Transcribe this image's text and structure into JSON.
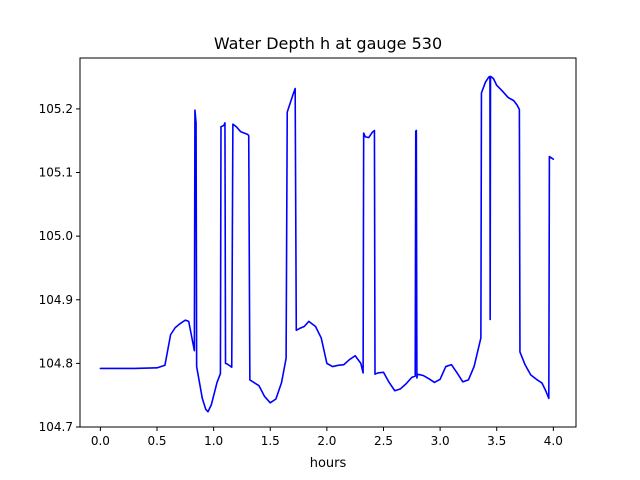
{
  "chart_data": {
    "type": "line",
    "title": "Water Depth h at gauge 530",
    "xlabel": "hours",
    "ylabel": "",
    "xlim": [
      -0.18,
      4.2
    ],
    "ylim": [
      104.7,
      105.28
    ],
    "xticks": [
      0.0,
      0.5,
      1.0,
      1.5,
      2.0,
      2.5,
      3.0,
      3.5,
      4.0
    ],
    "xtick_labels": [
      "0.0",
      "0.5",
      "1.0",
      "1.5",
      "2.0",
      "2.5",
      "3.0",
      "3.5",
      "4.0"
    ],
    "yticks": [
      104.7,
      104.8,
      104.9,
      105.0,
      105.1,
      105.2
    ],
    "ytick_labels": [
      "104.7",
      "104.8",
      "104.9",
      "105.0",
      "105.1",
      "105.2"
    ],
    "grid": false,
    "legend": "none",
    "series": [
      {
        "color": "#0000ff",
        "points": [
          [
            0.0,
            104.792
          ],
          [
            0.3,
            104.792
          ],
          [
            0.5,
            104.793
          ],
          [
            0.57,
            104.797
          ],
          [
            0.62,
            104.845
          ],
          [
            0.66,
            104.856
          ],
          [
            0.7,
            104.862
          ],
          [
            0.75,
            104.868
          ],
          [
            0.78,
            104.866
          ],
          [
            0.83,
            104.82
          ],
          [
            0.835,
            105.198
          ],
          [
            0.845,
            105.178
          ],
          [
            0.85,
            104.795
          ],
          [
            0.9,
            104.745
          ],
          [
            0.93,
            104.728
          ],
          [
            0.95,
            104.724
          ],
          [
            0.98,
            104.735
          ],
          [
            1.03,
            104.77
          ],
          [
            1.06,
            104.784
          ],
          [
            1.065,
            105.172
          ],
          [
            1.09,
            105.174
          ],
          [
            1.1,
            105.178
          ],
          [
            1.105,
            104.8
          ],
          [
            1.12,
            104.799
          ],
          [
            1.16,
            104.794
          ],
          [
            1.17,
            105.176
          ],
          [
            1.2,
            105.172
          ],
          [
            1.24,
            105.164
          ],
          [
            1.3,
            105.16
          ],
          [
            1.31,
            105.158
          ],
          [
            1.32,
            104.774
          ],
          [
            1.4,
            104.765
          ],
          [
            1.45,
            104.748
          ],
          [
            1.5,
            104.738
          ],
          [
            1.55,
            104.744
          ],
          [
            1.6,
            104.77
          ],
          [
            1.64,
            104.808
          ],
          [
            1.65,
            105.195
          ],
          [
            1.7,
            105.222
          ],
          [
            1.72,
            105.232
          ],
          [
            1.73,
            104.852
          ],
          [
            1.76,
            104.855
          ],
          [
            1.8,
            104.858
          ],
          [
            1.84,
            104.866
          ],
          [
            1.9,
            104.858
          ],
          [
            1.95,
            104.84
          ],
          [
            2.0,
            104.8
          ],
          [
            2.05,
            104.795
          ],
          [
            2.1,
            104.797
          ],
          [
            2.15,
            104.798
          ],
          [
            2.2,
            104.806
          ],
          [
            2.25,
            104.812
          ],
          [
            2.3,
            104.8
          ],
          [
            2.32,
            104.785
          ],
          [
            2.325,
            105.162
          ],
          [
            2.34,
            105.156
          ],
          [
            2.37,
            105.155
          ],
          [
            2.4,
            105.163
          ],
          [
            2.42,
            105.166
          ],
          [
            2.425,
            104.783
          ],
          [
            2.45,
            104.785
          ],
          [
            2.5,
            104.786
          ],
          [
            2.55,
            104.77
          ],
          [
            2.6,
            104.757
          ],
          [
            2.65,
            104.76
          ],
          [
            2.7,
            104.768
          ],
          [
            2.75,
            104.778
          ],
          [
            2.78,
            104.78
          ],
          [
            2.785,
            105.165
          ],
          [
            2.79,
            105.166
          ],
          [
            2.795,
            104.777
          ],
          [
            2.8,
            104.783
          ],
          [
            2.85,
            104.781
          ],
          [
            2.9,
            104.776
          ],
          [
            2.95,
            104.77
          ],
          [
            3.0,
            104.775
          ],
          [
            3.05,
            104.795
          ],
          [
            3.1,
            104.798
          ],
          [
            3.15,
            104.785
          ],
          [
            3.2,
            104.771
          ],
          [
            3.25,
            104.774
          ],
          [
            3.3,
            104.795
          ],
          [
            3.36,
            104.84
          ],
          [
            3.365,
            105.225
          ],
          [
            3.4,
            105.242
          ],
          [
            3.43,
            105.25
          ],
          [
            3.44,
            105.251
          ],
          [
            3.442,
            104.869
          ],
          [
            3.445,
            105.251
          ],
          [
            3.47,
            105.248
          ],
          [
            3.5,
            105.237
          ],
          [
            3.55,
            105.228
          ],
          [
            3.6,
            105.218
          ],
          [
            3.65,
            105.213
          ],
          [
            3.68,
            105.206
          ],
          [
            3.7,
            105.199
          ],
          [
            3.705,
            104.818
          ],
          [
            3.75,
            104.798
          ],
          [
            3.8,
            104.782
          ],
          [
            3.85,
            104.775
          ],
          [
            3.9,
            104.769
          ],
          [
            3.93,
            104.758
          ],
          [
            3.96,
            104.745
          ],
          [
            3.965,
            105.125
          ],
          [
            4.0,
            105.121
          ]
        ]
      }
    ]
  }
}
